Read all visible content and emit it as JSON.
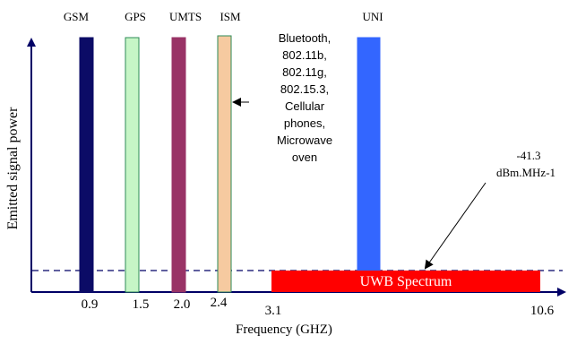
{
  "axes": {
    "xlabel": "Frequency (GHZ)",
    "ylabel": "Emitted signal power",
    "ticks": [
      "0.9",
      "1.5",
      "2.0",
      "2.4",
      "3.1",
      "10.6"
    ]
  },
  "bands": [
    {
      "id": "gsm",
      "label": "GSM",
      "color": "#0b0b66",
      "outline": "#0b0b66"
    },
    {
      "id": "gps",
      "label": "GPS",
      "color": "#c6f5c6",
      "outline": "#2e8b57"
    },
    {
      "id": "umts",
      "label": "UMTS",
      "color": "#993366",
      "outline": "#993366"
    },
    {
      "id": "ism",
      "label": "ISM",
      "color": "#f6caa0",
      "outline": "#2e8b57"
    },
    {
      "id": "uni",
      "label": "UNI",
      "color": "#3366ff",
      "outline": "#3366ff"
    }
  ],
  "uwb": {
    "label": "UWB Spectrum",
    "color": "#ff0000",
    "text_color": "#ffffff"
  },
  "ism_note": [
    "Bluetooth,",
    "802.11b,",
    "802.11g,",
    "802.15.3,",
    "Cellular",
    "phones,",
    "Microwave",
    "oven"
  ],
  "power_limit": {
    "value": "-41.3",
    "unit": "dBm.MHz-1"
  },
  "colors": {
    "axis": "#000066",
    "text": "#000000"
  }
}
